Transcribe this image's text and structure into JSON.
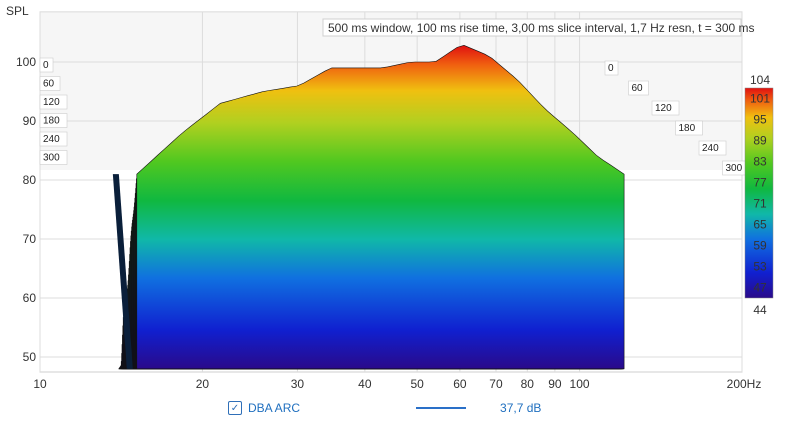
{
  "chart_data": {
    "type": "area",
    "title": "500 ms window, 100 ms rise time, 3,00 ms slice interval, 1,7 Hz resn, t = 300 ms",
    "ylabel": "SPL",
    "xunit": "Hz",
    "xscale": "log",
    "xlim": [
      10,
      200
    ],
    "ylim": [
      48,
      104
    ],
    "x_ticks": [
      "10",
      "20",
      "30",
      "40",
      "50",
      "60",
      "70",
      "80",
      "90",
      "100",
      "200Hz"
    ],
    "x_tick_values": [
      10,
      20,
      30,
      40,
      50,
      60,
      70,
      80,
      90,
      100,
      200
    ],
    "y_ticks": [
      "100",
      "90",
      "80",
      "70",
      "60",
      "50"
    ],
    "y_tick_values": [
      100,
      90,
      80,
      70,
      60,
      50
    ],
    "time_ticks_left": [
      "0",
      "60",
      "120",
      "180",
      "240",
      "300"
    ],
    "time_ticks_right": [
      "0",
      "60",
      "120",
      "180",
      "240",
      "300"
    ],
    "time_ms": [
      0,
      60,
      120,
      180,
      240,
      300
    ],
    "colorbar": {
      "min": 44,
      "max": 104,
      "ticks": [
        "104",
        "101",
        "95",
        "89",
        "83",
        "77",
        "71",
        "65",
        "59",
        "53",
        "47",
        "44"
      ],
      "tick_values": [
        104,
        101,
        95,
        89,
        83,
        77,
        71,
        65,
        59,
        53,
        47,
        44
      ]
    },
    "series": [
      {
        "name": "DBA ARC",
        "x": [
          14,
          17,
          20,
          24,
          28,
          32,
          36,
          40,
          45,
          50,
          56,
          63,
          71,
          80,
          90,
          100,
          112
        ],
        "values": [
          81,
          88,
          93,
          95,
          96,
          99,
          99,
          99,
          100,
          100,
          103,
          101,
          97,
          92,
          88,
          84,
          81
        ]
      }
    ]
  },
  "legend": {
    "series_name": "DBA ARC",
    "checkbox_checked": true,
    "value": "37,7 dB"
  },
  "colors": {
    "series_line": "#2a70c8",
    "grid": "#d8d8d8",
    "back_wall": "#ececec"
  }
}
